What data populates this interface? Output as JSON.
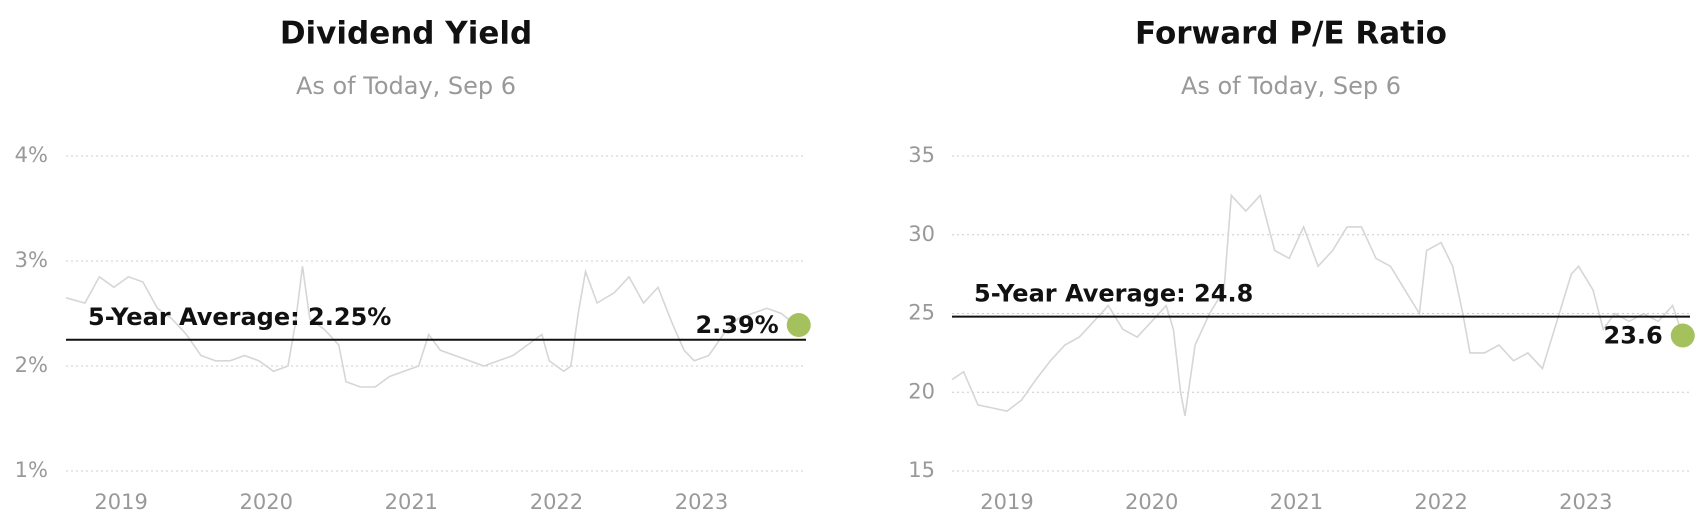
{
  "chart_data": [
    {
      "type": "line",
      "title": "Dividend Yield",
      "subtitle": "As of Today, Sep 6",
      "x": [
        2018.62,
        2018.75,
        2018.85,
        2018.95,
        2019.05,
        2019.15,
        2019.25,
        2019.35,
        2019.45,
        2019.55,
        2019.65,
        2019.75,
        2019.85,
        2019.95,
        2020.05,
        2020.15,
        2020.2,
        2020.25,
        2020.3,
        2020.4,
        2020.5,
        2020.55,
        2020.65,
        2020.75,
        2020.85,
        2020.95,
        2021.05,
        2021.12,
        2021.2,
        2021.3,
        2021.4,
        2021.5,
        2021.6,
        2021.7,
        2021.8,
        2021.9,
        2021.95,
        2022.05,
        2022.1,
        2022.15,
        2022.2,
        2022.28,
        2022.4,
        2022.5,
        2022.6,
        2022.7,
        2022.8,
        2022.88,
        2022.95,
        2023.05,
        2023.15,
        2023.25,
        2023.35,
        2023.45,
        2023.55,
        2023.65
      ],
      "series": [
        {
          "color": "#d6d6d6",
          "values": [
            2.65,
            2.6,
            2.85,
            2.75,
            2.85,
            2.8,
            2.55,
            2.45,
            2.3,
            2.1,
            2.05,
            2.05,
            2.1,
            2.05,
            1.95,
            2.0,
            2.4,
            2.95,
            2.45,
            2.35,
            2.2,
            1.85,
            1.8,
            1.8,
            1.9,
            1.95,
            2.0,
            2.3,
            2.15,
            2.1,
            2.05,
            2.0,
            2.05,
            2.1,
            2.2,
            2.3,
            2.05,
            1.95,
            2.0,
            2.5,
            2.9,
            2.6,
            2.7,
            2.85,
            2.6,
            2.75,
            2.4,
            2.15,
            2.05,
            2.1,
            2.3,
            2.45,
            2.5,
            2.55,
            2.5,
            2.39
          ]
        }
      ],
      "average": {
        "value": 2.25,
        "label": "5-Year Average: 2.25%"
      },
      "current": {
        "x": 2023.67,
        "value": 2.39,
        "label": "2.39%",
        "color": "#a5c15e"
      },
      "xlim": [
        2018.62,
        2023.72
      ],
      "xticks": [
        2019,
        2020,
        2021,
        2022,
        2023
      ],
      "ylim": [
        1,
        4
      ],
      "yticks": [
        {
          "value": 1,
          "label": "1%"
        },
        {
          "value": 2,
          "label": "2%"
        },
        {
          "value": 3,
          "label": "3%"
        },
        {
          "value": 4,
          "label": "4%"
        }
      ],
      "grid": true
    },
    {
      "type": "line",
      "title": "Forward P/E Ratio",
      "subtitle": "As of Today, Sep 6",
      "x": [
        2018.62,
        2018.7,
        2018.8,
        2018.9,
        2019.0,
        2019.1,
        2019.2,
        2019.3,
        2019.4,
        2019.5,
        2019.6,
        2019.7,
        2019.8,
        2019.9,
        2020.0,
        2020.1,
        2020.15,
        2020.2,
        2020.23,
        2020.3,
        2020.4,
        2020.5,
        2020.55,
        2020.65,
        2020.75,
        2020.85,
        2020.95,
        2021.05,
        2021.15,
        2021.25,
        2021.35,
        2021.45,
        2021.55,
        2021.65,
        2021.75,
        2021.85,
        2021.9,
        2022.0,
        2022.08,
        2022.15,
        2022.2,
        2022.3,
        2022.4,
        2022.5,
        2022.6,
        2022.7,
        2022.8,
        2022.9,
        2022.95,
        2023.05,
        2023.12,
        2023.2,
        2023.3,
        2023.4,
        2023.5,
        2023.6,
        2023.67
      ],
      "series": [
        {
          "color": "#d6d6d6",
          "values": [
            20.8,
            21.3,
            19.2,
            19,
            18.8,
            19.5,
            20.8,
            22,
            23,
            23.5,
            24.5,
            25.5,
            24,
            23.5,
            24.5,
            25.5,
            24,
            20,
            18.5,
            23,
            25,
            26.5,
            32.5,
            31.5,
            32.5,
            29,
            28.5,
            30.5,
            28,
            29,
            30.5,
            30.5,
            28.5,
            28,
            26.5,
            25,
            29,
            29.5,
            28,
            25,
            22.5,
            22.5,
            23,
            22,
            22.5,
            21.5,
            24.5,
            27.5,
            28,
            26.5,
            24,
            25,
            24.5,
            25,
            24.5,
            25.5,
            23.6
          ]
        }
      ],
      "average": {
        "value": 24.8,
        "label": "5-Year Average: 24.8"
      },
      "current": {
        "x": 2023.67,
        "value": 23.6,
        "label": "23.6",
        "color": "#a5c15e"
      },
      "xlim": [
        2018.62,
        2023.72
      ],
      "xticks": [
        2019,
        2020,
        2021,
        2022,
        2023
      ],
      "ylim": [
        15,
        35
      ],
      "yticks": [
        15,
        20,
        25,
        30,
        35
      ],
      "grid": true
    }
  ]
}
